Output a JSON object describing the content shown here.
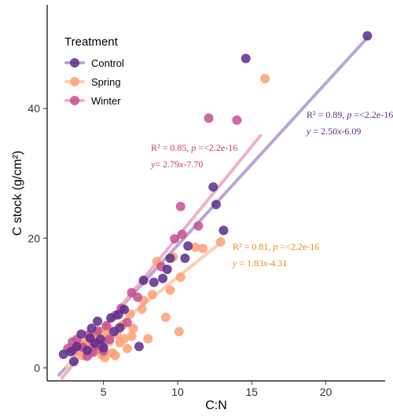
{
  "chart_data": {
    "type": "scatter",
    "xlabel": "C:N",
    "ylabel": "C stock (g/cm²)",
    "xlim": [
      1.2,
      24
    ],
    "ylim": [
      -2,
      56
    ],
    "x_ticks": [
      5,
      10,
      15,
      20
    ],
    "y_ticks": [
      0,
      20,
      40
    ],
    "grid": false,
    "legend": {
      "title": "Treatment",
      "placement": "top-left"
    },
    "colors": {
      "Control": "#5a2d8c",
      "Spring": "#fba075",
      "Winter": "#c4508f"
    },
    "series": [
      {
        "name": "Control",
        "points": [
          [
            22.8,
            51.2
          ],
          [
            14.6,
            47.7
          ],
          [
            12.4,
            27.9
          ],
          [
            12.6,
            25.2
          ],
          [
            13.1,
            21.2
          ],
          [
            9.3,
            15.2
          ],
          [
            9.5,
            16.9
          ],
          [
            10.5,
            16.9
          ],
          [
            8.4,
            13.2
          ],
          [
            7.7,
            13.5
          ],
          [
            6.4,
            9.0
          ],
          [
            6.0,
            8.2
          ],
          [
            5.5,
            7.7
          ],
          [
            4.6,
            7.2
          ],
          [
            4.2,
            6.1
          ],
          [
            3.5,
            5.2
          ],
          [
            2.8,
            2.5
          ],
          [
            2.3,
            2.1
          ],
          [
            3.0,
            1.0
          ],
          [
            4.4,
            3.8
          ],
          [
            4.8,
            4.4
          ],
          [
            5.0,
            3.1
          ],
          [
            3.9,
            2.7
          ],
          [
            3.2,
            3.3
          ],
          [
            7.4,
            3.3
          ],
          [
            5.7,
            5.6
          ],
          [
            4.1,
            4.6
          ],
          [
            6.1,
            6.2
          ],
          [
            9.0,
            13.8
          ],
          [
            10.7,
            18.8
          ]
        ]
      },
      {
        "name": "Spring",
        "points": [
          [
            15.9,
            44.6
          ],
          [
            12.9,
            19.4
          ],
          [
            11.7,
            18.4
          ],
          [
            11.2,
            18.6
          ],
          [
            9.7,
            17.1
          ],
          [
            10.2,
            14.0
          ],
          [
            8.6,
            16.4
          ],
          [
            9.5,
            12.0
          ],
          [
            8.3,
            11.3
          ],
          [
            7.7,
            10.4
          ],
          [
            7.6,
            9.1
          ],
          [
            6.8,
            8.3
          ],
          [
            7.0,
            6.1
          ],
          [
            8.0,
            4.5
          ],
          [
            9.2,
            7.8
          ],
          [
            10.1,
            5.6
          ],
          [
            6.9,
            4.9
          ],
          [
            6.3,
            6.6
          ],
          [
            5.9,
            5.2
          ],
          [
            5.4,
            4.1
          ],
          [
            5.0,
            3.6
          ],
          [
            4.7,
            2.9
          ],
          [
            4.1,
            2.3
          ],
          [
            3.6,
            1.9
          ],
          [
            3.1,
            2.6
          ],
          [
            5.8,
            1.9
          ],
          [
            6.1,
            3.9
          ],
          [
            6.6,
            3.0
          ],
          [
            4.8,
            5.5
          ],
          [
            5.3,
            6.1
          ],
          [
            4.5,
            4.8
          ],
          [
            3.8,
            3.9
          ],
          [
            4.3,
            3.0
          ],
          [
            5.1,
            1.6
          ],
          [
            5.6,
            2.3
          ],
          [
            6.4,
            4.5
          ],
          [
            3.4,
            3.6
          ],
          [
            4.9,
            2.0
          ],
          [
            5.2,
            4.8
          ],
          [
            4.0,
            4.2
          ]
        ]
      },
      {
        "name": "Winter",
        "points": [
          [
            12.1,
            38.5
          ],
          [
            14.0,
            38.2
          ],
          [
            10.2,
            24.9
          ],
          [
            10.3,
            20.6
          ],
          [
            9.8,
            19.9
          ],
          [
            11.4,
            21.9
          ],
          [
            6.9,
            11.6
          ],
          [
            7.3,
            10.9
          ],
          [
            6.2,
            9.2
          ],
          [
            5.8,
            8.1
          ],
          [
            5.2,
            6.5
          ],
          [
            4.6,
            5.7
          ],
          [
            4.0,
            5.1
          ],
          [
            3.2,
            4.4
          ],
          [
            2.6,
            3.0
          ],
          [
            3.6,
            3.2
          ],
          [
            4.3,
            2.4
          ],
          [
            6.6,
            7.0
          ],
          [
            5.4,
            4.4
          ],
          [
            4.9,
            3.6
          ],
          [
            3.9,
            1.8
          ],
          [
            3.0,
            2.9
          ],
          [
            4.5,
            3.4
          ],
          [
            5.0,
            2.6
          ],
          [
            2.9,
            4.0
          ],
          [
            8.9,
            15.6
          ]
        ]
      }
    ],
    "trendlines": [
      {
        "name": "Control",
        "slope": 2.5,
        "intercept": -6.09,
        "x_range": [
          2.0,
          22.8
        ],
        "color": "#b8a6d6",
        "width": 4
      },
      {
        "name": "Winter",
        "slope": 2.79,
        "intercept": -7.7,
        "x_range": [
          2.2,
          15.6
        ],
        "color": "#edb0cb",
        "width": 4
      },
      {
        "name": "Spring",
        "slope": 1.83,
        "intercept": -4.31,
        "x_range": [
          2.5,
          12.9
        ],
        "color": "#fbcfb3",
        "width": 4
      }
    ],
    "annotations": [
      {
        "series": "Control",
        "r2_text": "R² = 0.89, ",
        "p_label": "p",
        "p_text": " =<2.2e-16",
        "eq_var": "y",
        "eq_text": " = 2.50",
        "eq_x": "x",
        "eq_tail": "-6.09",
        "color": "#5a2d8c"
      },
      {
        "series": "Winter",
        "r2_text": "R² = 0.85, ",
        "p_label": "p",
        "p_text": " =<2.2e-16",
        "eq_var": "y",
        "eq_text": "= 2.79",
        "eq_x": "x",
        "eq_tail": "-7.70",
        "color": "#c23a6b"
      },
      {
        "series": "Spring",
        "r2_text": "R² = 0.81, ",
        "p_label": "p",
        "p_text": " =<2.2e-16",
        "eq_var": "y",
        "eq_text": " = 1.83",
        "eq_x": "x",
        "eq_tail": "-4.31",
        "color": "#e88a16"
      }
    ]
  }
}
